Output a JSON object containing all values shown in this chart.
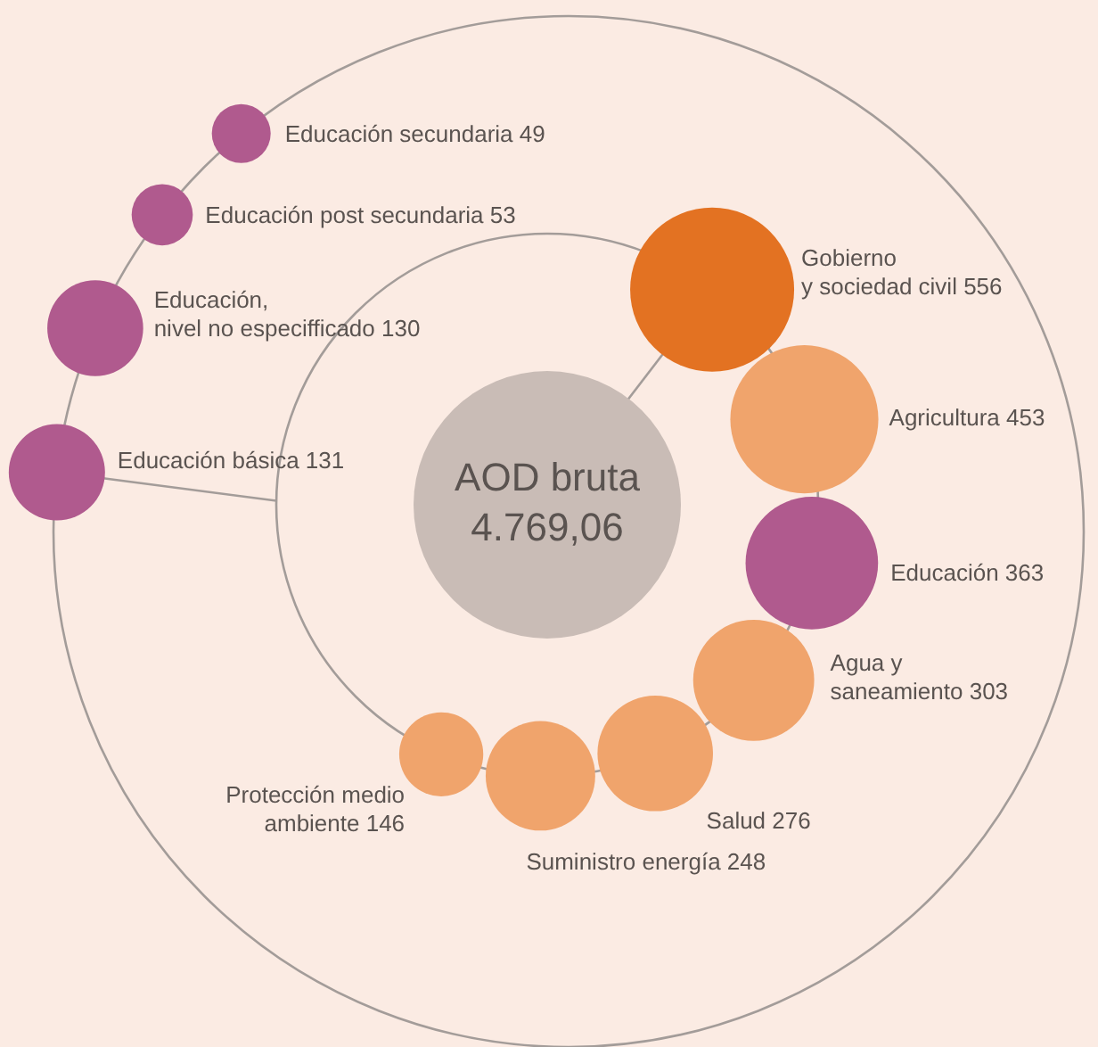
{
  "chart_data": {
    "type": "other",
    "categories": [
      "AOD bruta",
      "Gobierno y sociedad civil",
      "Agricultura",
      "Educación",
      "Agua y saneamiento",
      "Salud",
      "Suministro energía",
      "Protección medio ambiente",
      "Educación básica",
      "Educación, nivel no especifficado",
      "Educación post secundaria",
      "Educación secundaria"
    ],
    "values": [
      4769.06,
      556,
      453,
      363,
      303,
      276,
      248,
      146,
      131,
      130,
      53,
      49
    ],
    "value_labels": [
      "4.769,06",
      "556",
      "453",
      "363",
      "303",
      "276",
      "248",
      "146",
      "131",
      "130",
      "53",
      "49"
    ],
    "colors": [
      "#c9bcb6",
      "#e37222",
      "#f0a46c",
      "#b05a8e",
      "#f0a46c",
      "#f0a46c",
      "#f0a46c",
      "#f0a46c",
      "#b05a8e",
      "#b05a8e",
      "#b05a8e",
      "#b05a8e"
    ]
  }
}
